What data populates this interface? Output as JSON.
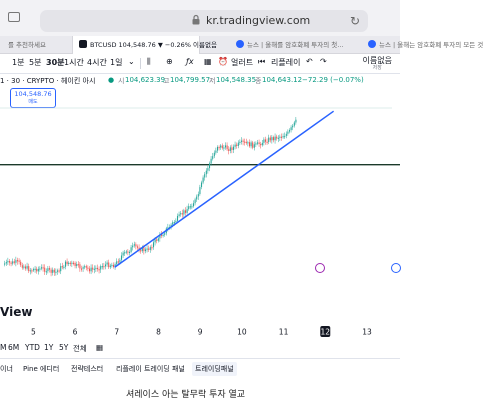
{
  "browser": {
    "url": "kr.tradingview.com",
    "tabs": [
      {
        "label": "를 추천하세요"
      },
      {
        "label": "BTCUSD 104,548.76 ▼ −0.26% 이름없음",
        "ticker_logo": "TV"
      },
      {
        "label": "뉴스 | 올해를 암호화폐 투자의 첫...",
        "ticker_logo": "TV"
      },
      {
        "label": "뉴스 | 올해는 암호화폐 투자의 모든 것",
        "ticker_logo": "TV"
      }
    ]
  },
  "toolbar": {
    "items": [
      "1분",
      "5분",
      "30분",
      "1시간",
      "4시간",
      "1일",
      "ƒx",
      "얼러트",
      "리플레이"
    ],
    "layout_name": "이름없음",
    "layout_sub": "저장"
  },
  "symbol": {
    "title": "1 · 30 · CRYPTO · 헤이킨 아시",
    "o_label": "시",
    "o": "104,623.39",
    "h_label": "고",
    "h": "104,799.57",
    "l_label": "저",
    "l": "104,548.35",
    "c_label": "종",
    "c": "104,643.12",
    "change": "−72.29 (−0.07%)"
  },
  "price_badge": {
    "price": "104,548.76",
    "label": "매도"
  },
  "chart_data": {
    "type": "line",
    "series": [
      {
        "name": "",
        "x": [
          4.3,
          4.6,
          4.9,
          5.2,
          5.5,
          5.8,
          6.1,
          6.4,
          6.7,
          6.95,
          7.1,
          7.4,
          7.7,
          8.0,
          8.3,
          8.6,
          8.9,
          9.1,
          9.4,
          9.7,
          10.0,
          10.3,
          10.6,
          10.9,
          11.1,
          11.3
        ],
        "y": [
          0.58,
          0.6,
          0.48,
          0.5,
          0.43,
          0.6,
          0.52,
          0.48,
          0.56,
          0.56,
          0.7,
          0.85,
          0.78,
          1.0,
          1.2,
          1.4,
          1.6,
          2.0,
          2.45,
          2.4,
          2.5,
          2.45,
          2.55,
          2.6,
          2.65,
          2.85
        ]
      }
    ],
    "trendline": {
      "x": [
        6.95,
        12.2
      ],
      "y": [
        0.52,
        3.0
      ]
    },
    "hline": {
      "y": 2.15
    },
    "x_ticks": [
      "5",
      "6",
      "7",
      "8",
      "9",
      "10",
      "11",
      "12",
      "13"
    ],
    "x_highlight": "12",
    "xlim": [
      4.2,
      13.6
    ],
    "ylim": [
      0,
      3.4
    ]
  },
  "chart_colors": {
    "candle": "#26a69a",
    "down": "#ef5350",
    "trend": "#2962ff",
    "hline": "#1b3a2a"
  },
  "view_title": "View",
  "ranges": [
    "M",
    "6M",
    "YTD",
    "1Y",
    "5Y",
    "전체"
  ],
  "bottom_tabs": [
    "이너",
    "Pine 에디터",
    "전략테스터",
    "리플레이 트레이딩 패널",
    "트레이딩패널"
  ],
  "active_bottom_tab": "트레이딩패널",
  "caption": "셔레이스 아는 탈무락 투자 열교"
}
